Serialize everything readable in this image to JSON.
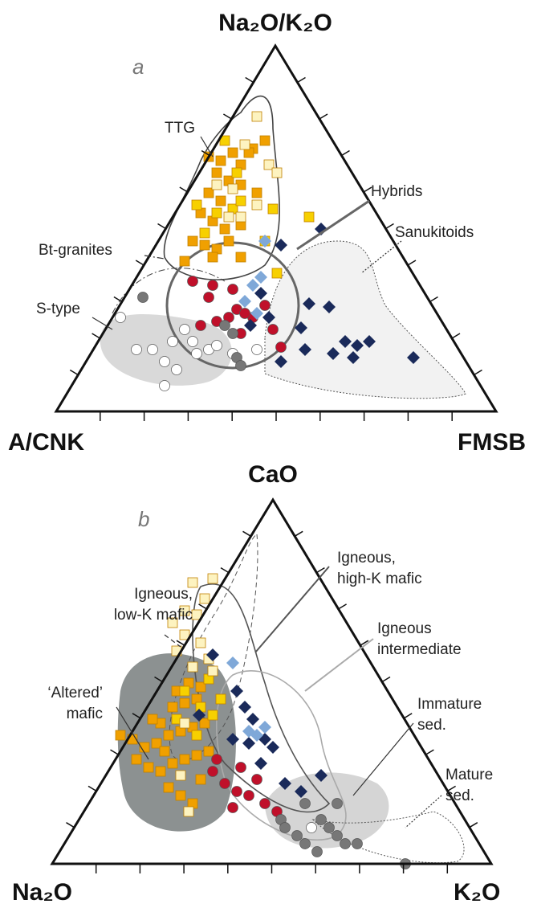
{
  "panels": [
    {
      "label": "a",
      "apex": "Na₂O/K₂O",
      "left": "A/CNK",
      "right": "FMSB",
      "fields": [
        "TTG",
        "Hybrids",
        "Sanukitoids",
        "Bt-granites",
        "S-type"
      ]
    },
    {
      "label": "b",
      "apex": "CaO",
      "left": "Na₂O",
      "right": "K₂O",
      "fields": [
        [
          "Igneous,",
          "high-K mafic"
        ],
        [
          "Igneous,",
          "low-K mafic"
        ],
        [
          "Igneous",
          "intermediate"
        ],
        [
          "‘Altered’",
          "mafic"
        ],
        [
          "Immature",
          "sed."
        ],
        [
          "Mature",
          "sed."
        ]
      ]
    }
  ]
}
